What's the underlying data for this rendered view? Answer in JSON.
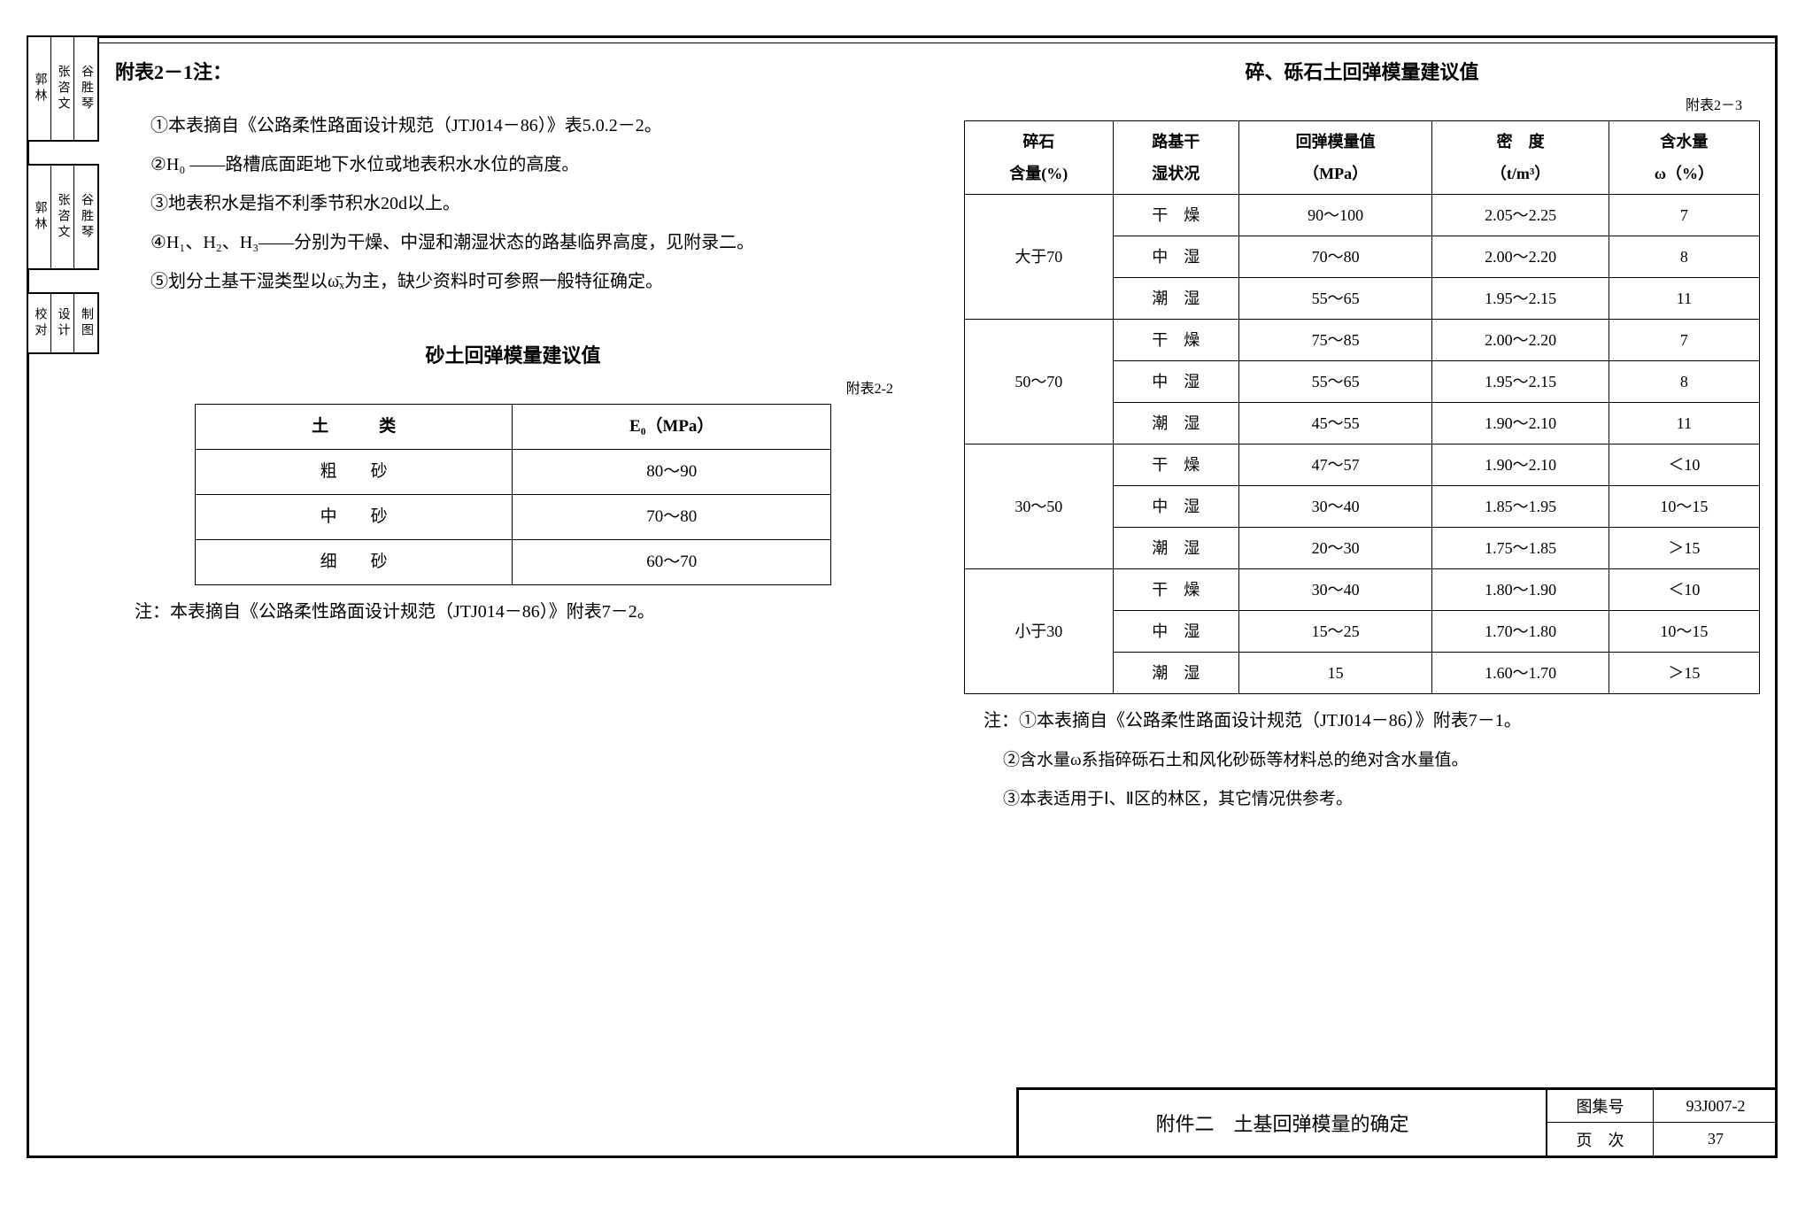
{
  "side_tabs": {
    "block1": [
      "郭林",
      "张咨文",
      "谷胜琴"
    ],
    "block2": [
      "郭林",
      "张咨文",
      "谷胜琴"
    ],
    "block3": [
      "校对",
      "设计",
      "制图"
    ]
  },
  "left_col": {
    "heading": "附表2－1注：",
    "notes": [
      "①本表摘自《公路柔性路面设计规范（JTJ014－86）》表5.0.2－2。",
      "②H₀ ——路槽底面距地下水位或地表积水水位的高度。",
      "③地表积水是指不利季节积水20d以上。",
      "④H₁、H₂、H₃——分别为干燥、中湿和潮湿状态的路基临界高度，见附录二。",
      "⑤划分土基干湿类型以ω̄ₓ为主，缺少资料时可参照一般特征确定。"
    ],
    "table_title": "砂土回弹模量建议值",
    "table_tag": "附表2-2",
    "headers": [
      "土　　　类",
      "E₀（MPa）"
    ],
    "rows": [
      [
        "粗　　砂",
        "80～90"
      ],
      [
        "中　　砂",
        "70～80"
      ],
      [
        "细　　砂",
        "60～70"
      ]
    ],
    "footnote": "注：本表摘自《公路柔性路面设计规范（JTJ014－86）》附表7－2。"
  },
  "right_col": {
    "table_title": "碎、砾石土回弹模量建议值",
    "table_tag": "附表2－3",
    "headers": [
      "碎石\n含量(%)",
      "路基干\n湿状况",
      "回弹模量值\n（MPa）",
      "密　度\n（t/m³）",
      "含水量\nω（%）"
    ],
    "groups": [
      {
        "label": "大于70",
        "rows": [
          [
            "干　燥",
            "90～100",
            "2.05～2.25",
            "7"
          ],
          [
            "中　湿",
            "70～80",
            "2.00～2.20",
            "8"
          ],
          [
            "潮　湿",
            "55～65",
            "1.95～2.15",
            "11"
          ]
        ]
      },
      {
        "label": "50～70",
        "rows": [
          [
            "干　燥",
            "75～85",
            "2.00～2.20",
            "7"
          ],
          [
            "中　湿",
            "55～65",
            "1.95～2.15",
            "8"
          ],
          [
            "潮　湿",
            "45～55",
            "1.90～2.10",
            "11"
          ]
        ]
      },
      {
        "label": "30～50",
        "rows": [
          [
            "干　燥",
            "47～57",
            "1.90～2.10",
            "＜10"
          ],
          [
            "中　湿",
            "30～40",
            "1.85～1.95",
            "10～15"
          ],
          [
            "潮　湿",
            "20～30",
            "1.75～1.85",
            "＞15"
          ]
        ]
      },
      {
        "label": "小于30",
        "rows": [
          [
            "干　燥",
            "30～40",
            "1.80～1.90",
            "＜10"
          ],
          [
            "中　湿",
            "15～25",
            "1.70～1.80",
            "10～15"
          ],
          [
            "潮　湿",
            "15",
            "1.60～1.70",
            "＞15"
          ]
        ]
      }
    ],
    "footnotes": [
      "注：①本表摘自《公路柔性路面设计规范（JTJ014－86）》附表7－1。",
      "②含水量ω系指碎砾石土和风化砂砾等材料总的绝对含水量值。",
      "③本表适用于Ⅰ、Ⅱ区的林区，其它情况供参考。"
    ]
  },
  "title_block": {
    "title": "附件二　土基回弹模量的确定",
    "fields": {
      "label1": "图集号",
      "value1": "93J007-2",
      "label2": "页　次",
      "value2": "37"
    }
  }
}
